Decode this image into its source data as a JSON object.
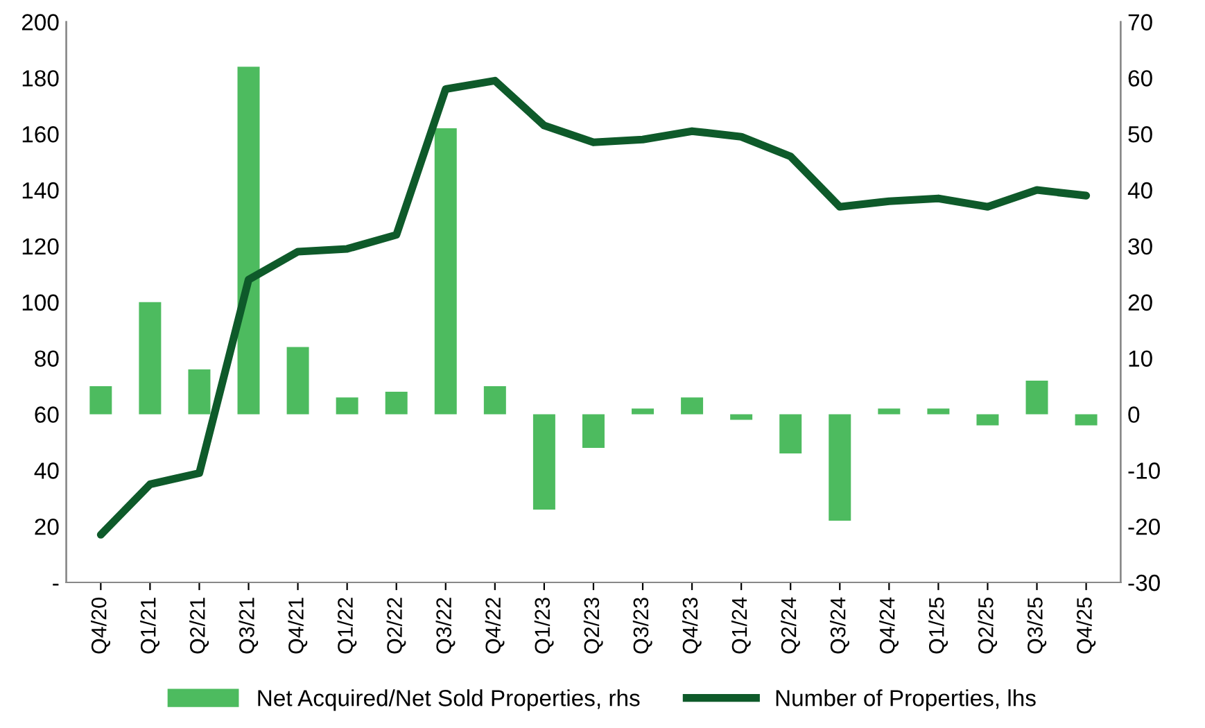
{
  "chart_data": {
    "type": "bar",
    "categories": [
      "Q4/20",
      "Q1/21",
      "Q2/21",
      "Q3/21",
      "Q4/21",
      "Q1/22",
      "Q2/22",
      "Q3/22",
      "Q4/22",
      "Q1/23",
      "Q2/23",
      "Q3/23",
      "Q4/23",
      "Q1/24",
      "Q2/24",
      "Q3/24",
      "Q4/24",
      "Q1/25",
      "Q2/25",
      "Q3/25",
      "Q4/25"
    ],
    "series": [
      {
        "name": "Net Acquired/Net Sold Properties, rhs",
        "axis": "y2",
        "color": "#4dbb5f",
        "values": [
          5,
          20,
          8,
          62,
          12,
          3,
          4,
          51,
          5,
          -17,
          -6,
          1,
          3,
          -1,
          -7,
          -19,
          1,
          1,
          -2,
          6,
          -2
        ]
      },
      {
        "name": "Number of Properties, lhs",
        "type": "line",
        "axis": "y",
        "color": "#0e5a2a",
        "values": [
          17,
          35,
          39,
          108,
          118,
          119,
          124,
          176,
          179,
          163,
          157,
          158,
          161,
          159,
          152,
          134,
          136,
          137,
          134,
          140,
          138
        ]
      }
    ],
    "ylim": [
      0,
      200
    ],
    "yticks": [
      {
        "value": 0,
        "label": "-"
      },
      20,
      40,
      60,
      80,
      100,
      120,
      140,
      160,
      180,
      200
    ],
    "y2lim": [
      -30,
      70
    ],
    "y2ticks": [
      -30,
      -20,
      -10,
      0,
      10,
      20,
      30,
      40,
      50,
      60,
      70
    ],
    "legend": "bottom",
    "grid": false
  }
}
